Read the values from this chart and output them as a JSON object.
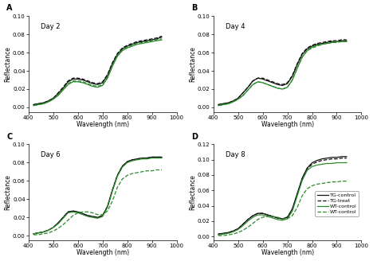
{
  "panels": [
    {
      "label": "A",
      "title": "Day 2",
      "ylim": [
        -0.005,
        0.1
      ],
      "yticks": [
        0.0,
        0.02,
        0.04,
        0.06,
        0.08,
        0.1
      ]
    },
    {
      "label": "B",
      "title": "Day 4",
      "ylim": [
        -0.005,
        0.1
      ],
      "yticks": [
        0.0,
        0.02,
        0.04,
        0.06,
        0.08,
        0.1
      ]
    },
    {
      "label": "C",
      "title": "Day 6",
      "ylim": [
        -0.005,
        0.1
      ],
      "yticks": [
        0.0,
        0.02,
        0.04,
        0.06,
        0.08,
        0.1
      ]
    },
    {
      "label": "D",
      "title": "Day 8",
      "ylim": [
        -0.005,
        0.12
      ],
      "yticks": [
        0.0,
        0.02,
        0.04,
        0.06,
        0.08,
        0.1,
        0.12
      ]
    }
  ],
  "legend_labels": [
    "TG-control",
    "TG-treat",
    "WT-control",
    "WT-control"
  ],
  "line_styles": [
    {
      "color": "#111111",
      "linestyle": "-",
      "linewidth": 0.9
    },
    {
      "color": "#111111",
      "linestyle": "--",
      "linewidth": 0.9
    },
    {
      "color": "#2a8a2a",
      "linestyle": "-",
      "linewidth": 0.9
    },
    {
      "color": "#2a8a2a",
      "linestyle": "--",
      "linewidth": 0.9
    }
  ],
  "xlabel": "Wavelength (nm)",
  "ylabel": "Reflectance",
  "xlim": [
    400,
    1000
  ],
  "xticks": [
    400,
    500,
    600,
    700,
    800,
    900,
    1000
  ],
  "wavelengths": [
    420,
    440,
    460,
    480,
    500,
    520,
    540,
    560,
    580,
    600,
    620,
    640,
    660,
    680,
    700,
    720,
    740,
    760,
    780,
    800,
    820,
    840,
    860,
    880,
    900,
    920,
    940
  ],
  "curves": {
    "A": {
      "TG_control": [
        0.003,
        0.004,
        0.005,
        0.007,
        0.01,
        0.015,
        0.021,
        0.028,
        0.031,
        0.031,
        0.03,
        0.028,
        0.026,
        0.025,
        0.027,
        0.035,
        0.048,
        0.058,
        0.064,
        0.067,
        0.069,
        0.071,
        0.072,
        0.073,
        0.074,
        0.075,
        0.077
      ],
      "TG_treat": [
        0.003,
        0.004,
        0.005,
        0.007,
        0.01,
        0.016,
        0.022,
        0.029,
        0.032,
        0.032,
        0.031,
        0.029,
        0.027,
        0.026,
        0.028,
        0.036,
        0.049,
        0.059,
        0.065,
        0.068,
        0.07,
        0.072,
        0.073,
        0.074,
        0.075,
        0.076,
        0.078
      ],
      "WT_Control": [
        0.002,
        0.003,
        0.004,
        0.006,
        0.009,
        0.013,
        0.019,
        0.025,
        0.028,
        0.028,
        0.027,
        0.025,
        0.023,
        0.022,
        0.024,
        0.032,
        0.045,
        0.056,
        0.062,
        0.065,
        0.067,
        0.069,
        0.07,
        0.071,
        0.072,
        0.073,
        0.074
      ],
      "WT_control": [
        0.002,
        0.003,
        0.004,
        0.006,
        0.009,
        0.014,
        0.02,
        0.026,
        0.029,
        0.029,
        0.028,
        0.026,
        0.024,
        0.023,
        0.025,
        0.033,
        0.046,
        0.057,
        0.063,
        0.066,
        0.068,
        0.07,
        0.071,
        0.072,
        0.073,
        0.074,
        0.075
      ]
    },
    "B": {
      "TG_control": [
        0.003,
        0.004,
        0.005,
        0.007,
        0.01,
        0.016,
        0.022,
        0.029,
        0.032,
        0.031,
        0.029,
        0.027,
        0.025,
        0.024,
        0.026,
        0.034,
        0.047,
        0.058,
        0.064,
        0.067,
        0.069,
        0.07,
        0.071,
        0.072,
        0.072,
        0.073,
        0.073
      ],
      "TG_treat": [
        0.003,
        0.004,
        0.005,
        0.007,
        0.01,
        0.016,
        0.022,
        0.029,
        0.032,
        0.032,
        0.03,
        0.028,
        0.026,
        0.025,
        0.027,
        0.035,
        0.048,
        0.059,
        0.065,
        0.068,
        0.07,
        0.071,
        0.072,
        0.073,
        0.073,
        0.074,
        0.074
      ],
      "WT_Control": [
        0.002,
        0.003,
        0.004,
        0.006,
        0.009,
        0.013,
        0.019,
        0.025,
        0.028,
        0.027,
        0.025,
        0.023,
        0.021,
        0.02,
        0.022,
        0.03,
        0.043,
        0.055,
        0.062,
        0.066,
        0.068,
        0.069,
        0.07,
        0.071,
        0.072,
        0.072,
        0.072
      ],
      "WT_control": [
        0.002,
        0.003,
        0.004,
        0.006,
        0.009,
        0.013,
        0.019,
        0.025,
        0.028,
        0.027,
        0.025,
        0.023,
        0.021,
        0.02,
        0.022,
        0.03,
        0.043,
        0.055,
        0.062,
        0.065,
        0.067,
        0.069,
        0.07,
        0.071,
        0.071,
        0.072,
        0.072
      ]
    },
    "C": {
      "TG_control": [
        0.002,
        0.003,
        0.004,
        0.006,
        0.009,
        0.014,
        0.02,
        0.026,
        0.027,
        0.026,
        0.024,
        0.022,
        0.021,
        0.02,
        0.022,
        0.032,
        0.05,
        0.066,
        0.076,
        0.081,
        0.083,
        0.084,
        0.085,
        0.085,
        0.086,
        0.086,
        0.086
      ],
      "TG_treat": [
        0.002,
        0.003,
        0.004,
        0.006,
        0.009,
        0.014,
        0.02,
        0.026,
        0.027,
        0.026,
        0.024,
        0.022,
        0.021,
        0.02,
        0.022,
        0.032,
        0.05,
        0.066,
        0.076,
        0.081,
        0.083,
        0.084,
        0.085,
        0.085,
        0.086,
        0.086,
        0.086
      ],
      "WT_Control": [
        0.002,
        0.003,
        0.004,
        0.006,
        0.009,
        0.013,
        0.019,
        0.025,
        0.026,
        0.025,
        0.023,
        0.021,
        0.02,
        0.019,
        0.021,
        0.031,
        0.049,
        0.065,
        0.075,
        0.08,
        0.082,
        0.083,
        0.084,
        0.084,
        0.085,
        0.085,
        0.085
      ],
      "WT_control": [
        0.001,
        0.001,
        0.002,
        0.003,
        0.005,
        0.008,
        0.012,
        0.017,
        0.022,
        0.025,
        0.026,
        0.026,
        0.025,
        0.023,
        0.023,
        0.027,
        0.038,
        0.053,
        0.062,
        0.066,
        0.068,
        0.069,
        0.07,
        0.071,
        0.071,
        0.072,
        0.072
      ]
    },
    "D": {
      "TG_control": [
        0.003,
        0.004,
        0.005,
        0.007,
        0.01,
        0.016,
        0.022,
        0.027,
        0.03,
        0.03,
        0.028,
        0.026,
        0.024,
        0.023,
        0.025,
        0.036,
        0.056,
        0.076,
        0.089,
        0.096,
        0.099,
        0.101,
        0.102,
        0.103,
        0.103,
        0.104,
        0.104
      ],
      "TG_treat": [
        0.003,
        0.004,
        0.005,
        0.007,
        0.01,
        0.016,
        0.022,
        0.027,
        0.03,
        0.03,
        0.028,
        0.026,
        0.024,
        0.023,
        0.025,
        0.035,
        0.055,
        0.075,
        0.088,
        0.094,
        0.097,
        0.099,
        0.1,
        0.101,
        0.101,
        0.102,
        0.102
      ],
      "WT_Control": [
        0.002,
        0.003,
        0.004,
        0.006,
        0.009,
        0.014,
        0.02,
        0.025,
        0.028,
        0.028,
        0.026,
        0.024,
        0.022,
        0.021,
        0.023,
        0.033,
        0.053,
        0.073,
        0.086,
        0.091,
        0.093,
        0.094,
        0.095,
        0.095,
        0.096,
        0.096,
        0.096
      ],
      "WT_control": [
        0.001,
        0.001,
        0.002,
        0.003,
        0.005,
        0.008,
        0.012,
        0.017,
        0.022,
        0.025,
        0.026,
        0.026,
        0.025,
        0.023,
        0.023,
        0.027,
        0.038,
        0.053,
        0.062,
        0.066,
        0.068,
        0.069,
        0.07,
        0.071,
        0.071,
        0.072,
        0.072
      ]
    }
  }
}
